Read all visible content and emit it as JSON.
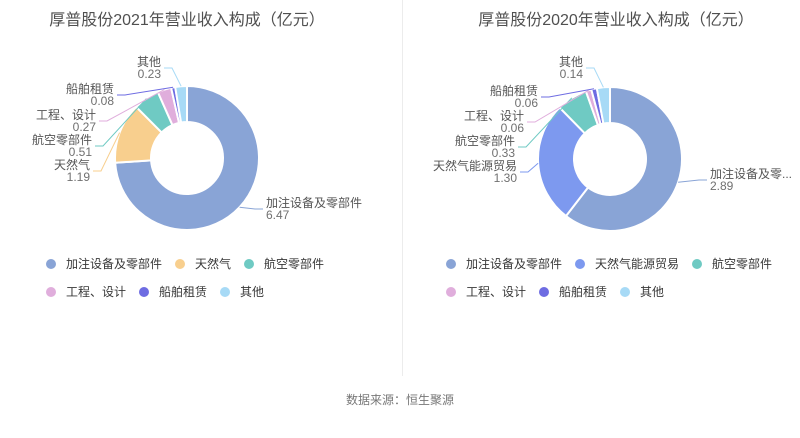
{
  "source": "数据来源：恒生聚源",
  "divider_color": "#ececec",
  "chart_data": [
    {
      "type": "pie",
      "donut": true,
      "title": "厚普股份2021年营业收入构成（亿元）",
      "unit": "亿元",
      "legend_position": "below",
      "categories": [
        "加注设备及零部件",
        "天然气",
        "航空零部件",
        "工程、设计",
        "船舶租赁",
        "其他"
      ],
      "values": [
        6.47,
        1.19,
        0.51,
        0.27,
        0.08,
        0.23
      ],
      "colors": [
        "#89a4d6",
        "#f8cf8e",
        "#6fcac3",
        "#e0aedc",
        "#6e6ce2",
        "#a7daf6"
      ],
      "callout_labels": [
        "加注设备及零部件",
        "天然气",
        "航空零部件",
        "工程、设计",
        "船舶租赁",
        "其他"
      ],
      "legend_rows": [
        [
          0,
          1,
          2
        ],
        [
          3,
          4,
          5
        ]
      ]
    },
    {
      "type": "pie",
      "donut": true,
      "title": "厚普股份2020年营业收入构成（亿元）",
      "unit": "亿元",
      "legend_position": "below",
      "categories": [
        "加注设备及零部件",
        "天然气能源贸易",
        "航空零部件",
        "工程、设计",
        "船舶租赁",
        "其他"
      ],
      "values": [
        2.89,
        1.3,
        0.33,
        0.06,
        0.06,
        0.14
      ],
      "colors": [
        "#89a4d6",
        "#7d99ef",
        "#6fcac3",
        "#e0aedc",
        "#6e6ce2",
        "#a7daf6"
      ],
      "callout_labels": [
        "加注设备及零...",
        "天然气能源贸易",
        "航空零部件",
        "工程、设计",
        "船舶租赁",
        "其他"
      ],
      "legend_rows": [
        [
          0,
          1,
          2
        ],
        [
          3,
          4,
          5
        ]
      ]
    }
  ]
}
